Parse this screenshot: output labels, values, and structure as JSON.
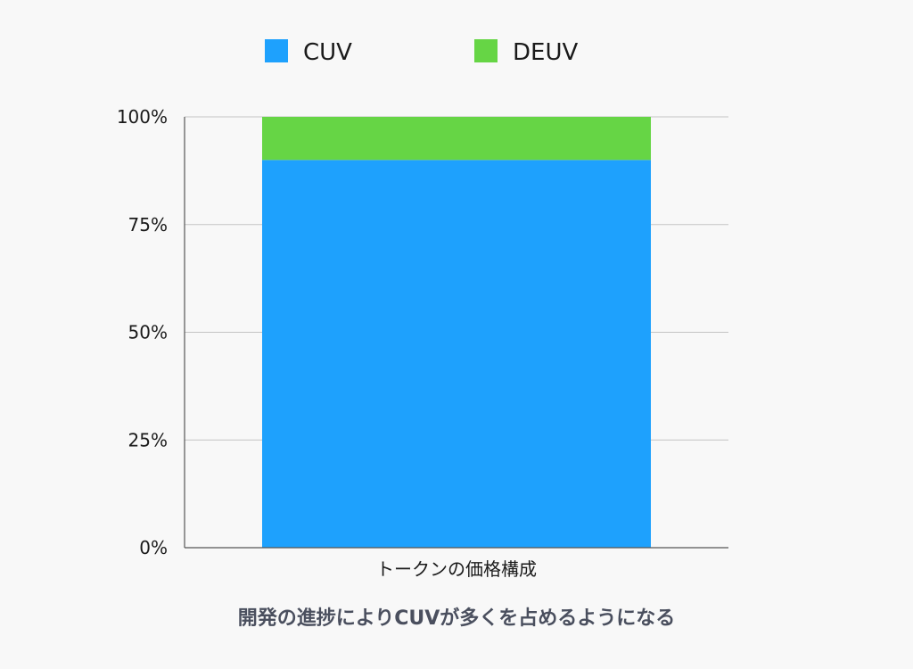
{
  "chart_data": {
    "type": "bar",
    "stacked": true,
    "categories": [
      "トークンの価格構成"
    ],
    "series": [
      {
        "name": "CUV",
        "values": [
          90
        ],
        "color": "#1ea1fd"
      },
      {
        "name": "DEUV",
        "values": [
          10
        ],
        "color": "#66d545"
      }
    ],
    "ylim": [
      0,
      100
    ],
    "yticks": [
      0,
      25,
      50,
      75,
      100
    ],
    "ytick_labels": [
      "0%",
      "25%",
      "50%",
      "75%",
      "100%"
    ],
    "grid": true,
    "legend_position": "top"
  },
  "caption": "開発の進捗によりCUVが多くを占めるようになる"
}
